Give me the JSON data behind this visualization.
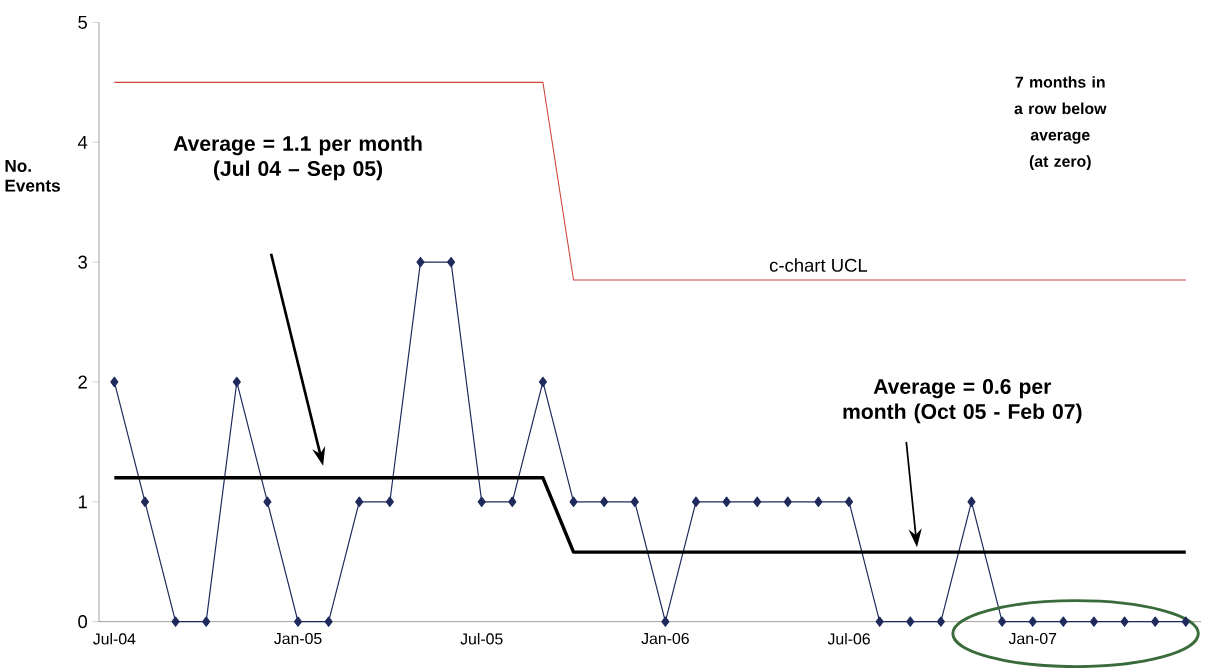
{
  "chart_data": {
    "type": "line",
    "ylabel": "No. Events",
    "categories": [
      "Jul-04",
      null,
      null,
      null,
      null,
      null,
      "Jan-05",
      null,
      null,
      null,
      null,
      null,
      "Jul-05",
      null,
      null,
      null,
      null,
      null,
      "Jan-06",
      null,
      null,
      null,
      null,
      null,
      "Jul-06",
      null,
      null,
      null,
      null,
      null,
      "Jan-07",
      null,
      null,
      null,
      null,
      null
    ],
    "series": [
      {
        "color": "#1f2a5c",
        "marker": "diamond",
        "values": [
          2,
          1,
          0,
          0,
          2,
          1,
          0,
          0,
          1,
          1,
          3,
          3,
          1,
          1,
          2,
          1,
          1,
          1,
          0,
          1,
          1,
          1,
          1,
          1,
          1,
          0,
          0,
          0,
          1,
          0,
          0,
          0,
          0,
          0,
          0,
          0
        ]
      },
      {
        "name": "c-chart UCL",
        "color": "#d0453a",
        "marker": "none",
        "values": [
          4.5,
          4.5,
          4.5,
          4.5,
          4.5,
          4.5,
          4.5,
          4.5,
          4.5,
          4.5,
          4.5,
          4.5,
          4.5,
          4.5,
          4.5,
          2.85,
          2.85,
          2.85,
          2.85,
          2.85,
          2.85,
          2.85,
          2.85,
          2.85,
          2.85,
          2.85,
          2.85,
          2.85,
          2.85,
          2.85,
          2.85,
          2.85,
          2.85,
          2.85,
          2.85,
          2.85
        ]
      },
      {
        "color": "#000000",
        "marker": "none",
        "values": [
          1.2,
          1.2,
          1.2,
          1.2,
          1.2,
          1.2,
          1.2,
          1.2,
          1.2,
          1.2,
          1.2,
          1.2,
          1.2,
          1.2,
          1.2,
          0.58,
          0.58,
          0.58,
          0.58,
          0.58,
          0.58,
          0.58,
          0.58,
          0.58,
          0.58,
          0.58,
          0.58,
          0.58,
          0.58,
          0.58,
          0.58,
          0.58,
          0.58,
          0.58,
          0.58,
          0.58
        ]
      }
    ],
    "ylim": [
      0,
      5
    ],
    "yticks": [
      0,
      1,
      2,
      3,
      4,
      5
    ],
    "grid": false,
    "annotations": [
      "Average = 1.1 per month (Jul 04 – Sep 05)",
      "Average = 0.6 per month (Oct 05 - Feb 07)",
      "7 months in a row below average (at zero)"
    ]
  }
}
